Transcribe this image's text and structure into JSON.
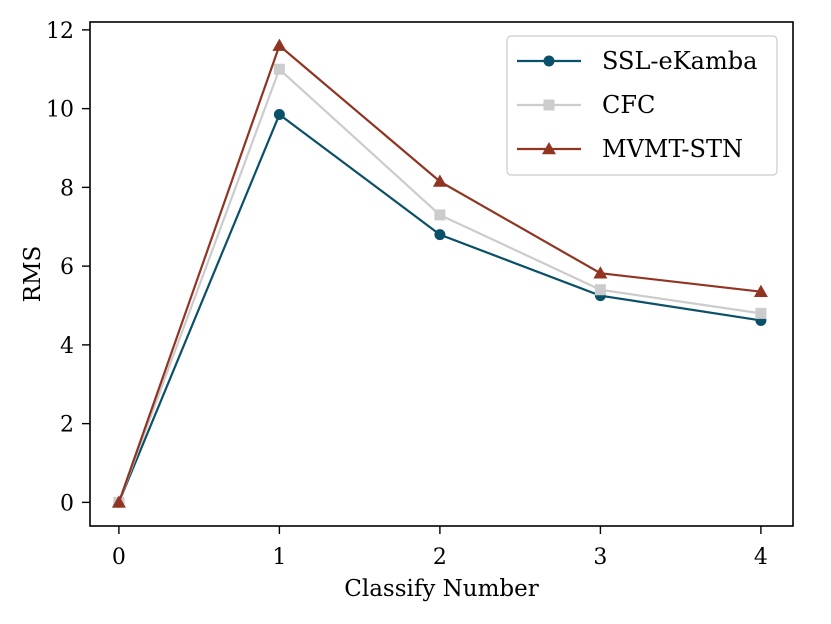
{
  "chart_data": {
    "type": "line",
    "title": "",
    "xlabel": "Classify Number",
    "ylabel": "RMS",
    "x": [
      0,
      1,
      2,
      3,
      4
    ],
    "xticks": [
      "0",
      "1",
      "2",
      "3",
      "4"
    ],
    "yticks": [
      "0",
      "2",
      "4",
      "6",
      "8",
      "10",
      "12"
    ],
    "xlim": [
      -0.18,
      4.2
    ],
    "ylim": [
      -0.6,
      12.2
    ],
    "grid": false,
    "legend_position": "top-right",
    "series": [
      {
        "name": "SSL-eKamba",
        "values": [
          0.0,
          9.85,
          6.8,
          5.25,
          4.62
        ],
        "color": "#0b5069",
        "marker": "circle"
      },
      {
        "name": "CFC",
        "values": [
          0.0,
          11.0,
          7.3,
          5.4,
          4.8
        ],
        "color": "#cccccc",
        "marker": "square"
      },
      {
        "name": "MVMT-STN",
        "values": [
          0.0,
          11.6,
          8.15,
          5.82,
          5.35
        ],
        "color": "#913421",
        "marker": "triangle"
      }
    ]
  }
}
